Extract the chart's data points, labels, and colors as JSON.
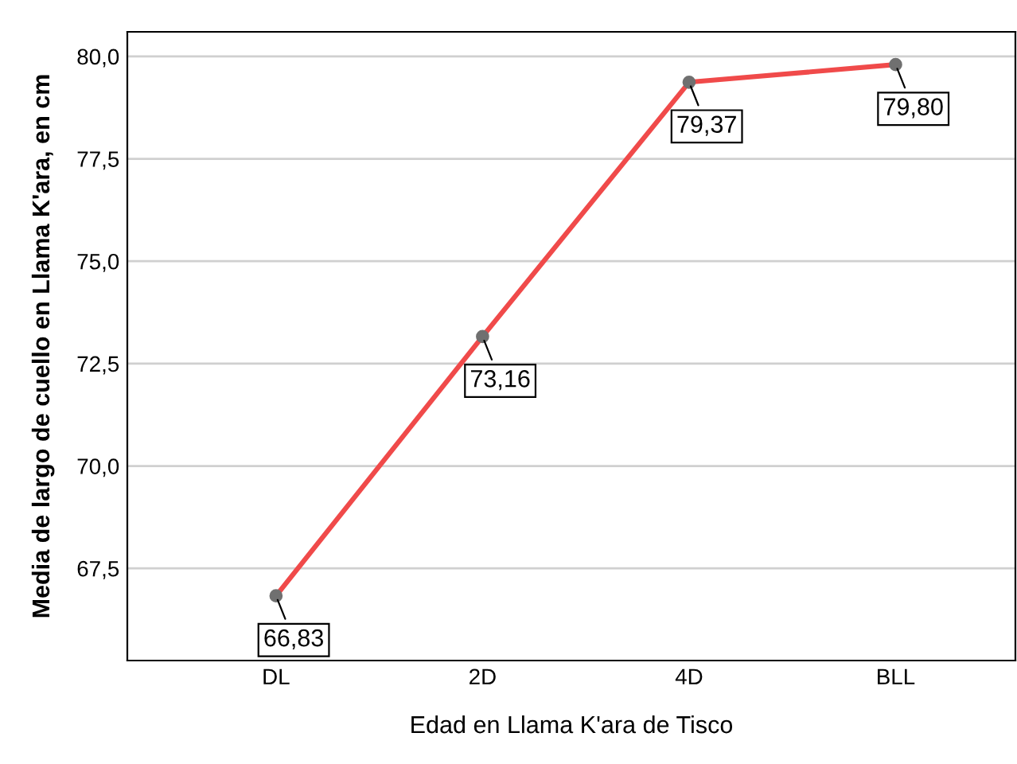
{
  "chart_data": {
    "type": "line",
    "xlabel": "Edad en Llama K'ara de Tisco",
    "ylabel": "Media de largo de cuello en Llama K'ara, en cm",
    "categories": [
      "DL",
      "2D",
      "4D",
      "BLL"
    ],
    "series": [
      {
        "color": "#f04a4a",
        "values": [
          66.83,
          73.16,
          79.37,
          79.8
        ],
        "value_labels": [
          "66,83",
          "73,16",
          "79,37",
          "79,80"
        ]
      }
    ],
    "ylim": [
      65.25,
      80.6
    ],
    "yticks": [
      {
        "value": 67.5,
        "label": "67,5"
      },
      {
        "value": 70.0,
        "label": "70,0"
      },
      {
        "value": 72.5,
        "label": "72,5"
      },
      {
        "value": 75.0,
        "label": "75,0"
      },
      {
        "value": 77.5,
        "label": "77,5"
      },
      {
        "value": 80.0,
        "label": "80,0"
      }
    ],
    "grid": "y",
    "marker": "circle",
    "line_style": "solid",
    "legend": false
  }
}
